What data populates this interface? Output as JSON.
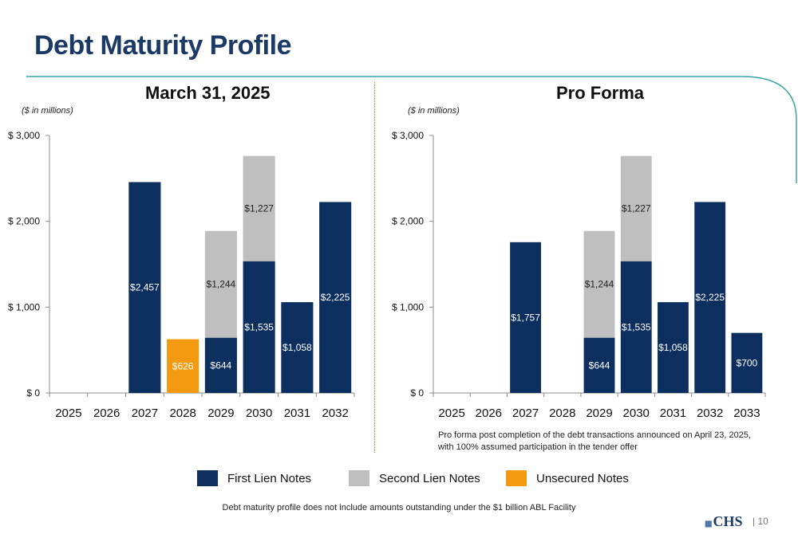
{
  "page": {
    "title": "Debt Maturity Profile",
    "legend": {
      "first_lien": "First Lien Notes",
      "second_lien": "Second Lien Notes",
      "unsecured": "Unsecured Notes"
    },
    "footnote": "Debt maturity profile does not include amounts outstanding under the $1 billion ABL Facility",
    "logo_text": "CHS",
    "page_number": "| 10"
  },
  "colors": {
    "first_lien": "#0d2f5f",
    "second_lien": "#bfbfbf",
    "unsecured": "#f39a11",
    "title": "#1b3a66"
  },
  "chart_data": [
    {
      "type": "bar",
      "stacked": true,
      "title": "March 31, 2025",
      "unit_label": "($ in millions)",
      "categories": [
        "2025",
        "2026",
        "2027",
        "2028",
        "2029",
        "2030",
        "2031",
        "2032"
      ],
      "y_ticks": [
        "$ 0",
        "$ 1,000",
        "$ 2,000",
        "$ 3,000"
      ],
      "ylim": [
        0,
        3000
      ],
      "series": [
        {
          "name": "First Lien Notes",
          "key": "first_lien",
          "values": [
            0,
            0,
            2457,
            0,
            644,
            1535,
            1058,
            2225
          ],
          "labels": [
            "",
            "",
            "$2,457",
            "",
            "$644",
            "$1,535",
            "$1,058",
            "$2,225"
          ]
        },
        {
          "name": "Second Lien Notes",
          "key": "second_lien",
          "values": [
            0,
            0,
            0,
            0,
            1244,
            1227,
            0,
            0
          ],
          "labels": [
            "",
            "",
            "",
            "",
            "$1,244",
            "$1,227",
            "",
            ""
          ]
        },
        {
          "name": "Unsecured Notes",
          "key": "unsecured",
          "values": [
            0,
            0,
            0,
            626,
            0,
            0,
            0,
            0
          ],
          "labels": [
            "",
            "",
            "",
            "$626",
            "",
            "",
            "",
            ""
          ]
        }
      ]
    },
    {
      "type": "bar",
      "stacked": true,
      "title": "Pro Forma",
      "unit_label": "($ in millions)",
      "categories": [
        "2025",
        "2026",
        "2027",
        "2028",
        "2029",
        "2030",
        "2031",
        "2032",
        "2033"
      ],
      "y_ticks": [
        "$ 0",
        "$ 1,000",
        "$ 2,000",
        "$ 3,000"
      ],
      "ylim": [
        0,
        3000
      ],
      "note_lines": [
        "Pro forma post completion of the debt transactions announced on April 23, 2025,",
        "with 100% assumed participation in the tender offer"
      ],
      "series": [
        {
          "name": "First Lien Notes",
          "key": "first_lien",
          "values": [
            0,
            0,
            1757,
            0,
            644,
            1535,
            1058,
            2225,
            700
          ],
          "labels": [
            "",
            "",
            "$1,757",
            "",
            "$644",
            "$1,535",
            "$1,058",
            "$2,225",
            "$700"
          ]
        },
        {
          "name": "Second Lien Notes",
          "key": "second_lien",
          "values": [
            0,
            0,
            0,
            0,
            1244,
            1227,
            0,
            0,
            0
          ],
          "labels": [
            "",
            "",
            "",
            "",
            "$1,244",
            "$1,227",
            "",
            "",
            ""
          ]
        }
      ]
    }
  ]
}
